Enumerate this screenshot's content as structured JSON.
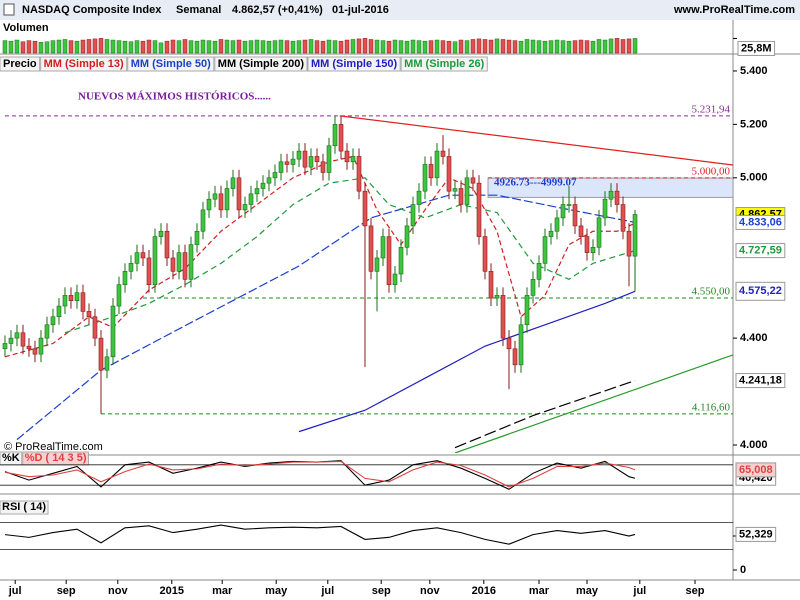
{
  "header": {
    "title": "NASDAQ Composite Index",
    "period": "Semanal",
    "last": "4.862,57 (+0,41%)",
    "date": "01-jul-2016",
    "site": "www.ProRealTime.com",
    "copyright": "© ProRealTime.com"
  },
  "chart_data": [
    {
      "type": "bar",
      "title": "Volumen",
      "ylim": [
        0,
        55
      ],
      "yticks": [
        {
          "value": 25.8,
          "label": "25,8M"
        }
      ],
      "values": [
        22,
        21,
        23,
        20,
        22,
        21,
        19,
        20,
        22,
        23,
        24,
        22,
        21,
        23,
        24,
        25,
        26,
        24,
        23,
        22,
        21,
        20,
        22,
        21,
        23,
        22,
        18,
        21,
        23,
        22,
        24,
        22,
        21,
        23,
        22,
        21,
        24,
        23,
        22,
        23,
        21,
        22,
        23,
        22,
        21,
        22,
        23,
        22,
        21,
        22,
        23,
        24,
        22,
        21,
        23,
        22,
        21,
        23,
        24,
        25,
        26,
        24,
        23,
        22,
        21,
        23,
        22,
        21,
        23,
        22,
        21,
        22,
        23,
        22,
        21,
        20,
        23,
        22,
        24,
        25,
        24,
        23,
        25,
        24,
        23,
        22,
        21,
        24,
        23,
        22,
        21,
        22,
        23,
        22,
        21,
        22,
        23,
        22,
        21,
        24,
        23,
        25,
        26,
        24,
        25,
        25.8
      ]
    },
    {
      "type": "candlestick",
      "title": "Precio",
      "up_color": "#3ec43e",
      "down_color": "#e05050",
      "xlim": [
        -0.83,
        121.33
      ],
      "ylim": [
        3970,
        5456
      ],
      "xticks": [
        {
          "value": 1.7,
          "label": "jul"
        },
        {
          "value": 10.2,
          "label": "sep"
        },
        {
          "value": 18.8,
          "label": "nov"
        },
        {
          "value": 27.8,
          "label": "2015"
        },
        {
          "value": 36.2,
          "label": "mar"
        },
        {
          "value": 45.2,
          "label": "may"
        },
        {
          "value": 53.8,
          "label": "jul"
        },
        {
          "value": 62.7,
          "label": "sep"
        },
        {
          "value": 70.8,
          "label": "nov"
        },
        {
          "value": 79.8,
          "label": "2016"
        },
        {
          "value": 89,
          "label": "mar"
        },
        {
          "value": 97,
          "label": "may"
        },
        {
          "value": 105.8,
          "label": "jul"
        },
        {
          "value": 115,
          "label": "sep"
        }
      ],
      "yticks": [
        {
          "value": 5400,
          "label": "5.400"
        },
        {
          "value": 5200,
          "label": "5.200"
        },
        {
          "value": 5000,
          "label": "5.000"
        },
        {
          "value": 4400,
          "label": "4.400"
        },
        {
          "value": 4000,
          "label": "4.000"
        }
      ],
      "open": [
        4360,
        4380,
        4400,
        4420,
        4370,
        4360,
        4340,
        4400,
        4450,
        4480,
        4520,
        4560,
        4540,
        4570,
        4500,
        4480,
        4400,
        4280,
        4330,
        4520,
        4600,
        4650,
        4680,
        4720,
        4700,
        4600,
        4780,
        4800,
        4700,
        4650,
        4720,
        4620,
        4750,
        4800,
        4880,
        4920,
        4940,
        4880,
        4960,
        5000,
        4880,
        4900,
        4940,
        4960,
        4980,
        5000,
        5020,
        5060,
        5050,
        5070,
        5100,
        5040,
        5080,
        5060,
        5020,
        5120,
        5200,
        5100,
        5060,
        5080,
        4950,
        4820,
        4650,
        4700,
        4780,
        4600,
        4640,
        4740,
        4820,
        4900,
        4950,
        5050,
        5000,
        5100,
        5080,
        4950,
        4960,
        4900,
        5000,
        4980,
        4780,
        4650,
        4550,
        4560,
        4400,
        4360,
        4300,
        4450,
        4560,
        4620,
        4680,
        4780,
        4800,
        4850,
        4900,
        4900,
        4820,
        4780,
        4720,
        4740,
        4850,
        4920,
        4950,
        4900,
        4800,
        4707
      ],
      "high": [
        4410,
        4430,
        4450,
        4450,
        4400,
        4390,
        4430,
        4480,
        4510,
        4550,
        4590,
        4590,
        4600,
        4600,
        4530,
        4510,
        4430,
        4360,
        4550,
        4630,
        4680,
        4710,
        4750,
        4750,
        4730,
        4810,
        4830,
        4830,
        4730,
        4750,
        4750,
        4780,
        4830,
        4910,
        4950,
        4970,
        4970,
        4990,
        5030,
        5030,
        4930,
        4970,
        4990,
        5010,
        5030,
        5050,
        5090,
        5090,
        5100,
        5130,
        5130,
        5110,
        5110,
        5090,
        5150,
        5231.94,
        5230,
        5130,
        5110,
        5110,
        4980,
        4850,
        4730,
        4810,
        4810,
        4670,
        4770,
        4850,
        4930,
        4980,
        5080,
        5080,
        5130,
        5160,
        5110,
        4990,
        4990,
        5030,
        5030,
        5010,
        4810,
        4680,
        4590,
        4590,
        4430,
        4390,
        4480,
        4590,
        4650,
        4710,
        4810,
        4830,
        4880,
        4930,
        4970,
        4930,
        4850,
        4810,
        4770,
        4880,
        4950,
        4980,
        4980,
        4930,
        4830,
        4880
      ],
      "low": [
        4330,
        4350,
        4370,
        4340,
        4330,
        4310,
        4310,
        4370,
        4420,
        4450,
        4490,
        4510,
        4510,
        4470,
        4450,
        4370,
        4116.6,
        4250,
        4300,
        4490,
        4570,
        4620,
        4650,
        4670,
        4570,
        4570,
        4750,
        4670,
        4620,
        4620,
        4590,
        4590,
        4720,
        4770,
        4850,
        4890,
        4850,
        4850,
        4930,
        4850,
        4850,
        4870,
        4910,
        4930,
        4950,
        4970,
        4990,
        5020,
        5020,
        5040,
        5010,
        5010,
        5030,
        4990,
        4990,
        5090,
        5070,
        5030,
        5030,
        4920,
        4292,
        4620,
        4500,
        4670,
        4570,
        4570,
        4610,
        4710,
        4790,
        4870,
        4920,
        4970,
        4970,
        5050,
        4920,
        4920,
        4870,
        4870,
        4950,
        4750,
        4620,
        4520,
        4520,
        4370,
        4209,
        4270,
        4270,
        4420,
        4530,
        4590,
        4650,
        4750,
        4770,
        4820,
        4870,
        4790,
        4750,
        4690,
        4690,
        4710,
        4820,
        4890,
        4870,
        4770,
        4594,
        4575.22
      ],
      "close": [
        4380,
        4400,
        4420,
        4370,
        4360,
        4340,
        4400,
        4450,
        4480,
        4520,
        4560,
        4540,
        4570,
        4500,
        4480,
        4400,
        4280,
        4330,
        4520,
        4600,
        4650,
        4680,
        4720,
        4700,
        4600,
        4780,
        4800,
        4700,
        4650,
        4720,
        4620,
        4750,
        4800,
        4880,
        4920,
        4940,
        4880,
        4960,
        5000,
        4880,
        4900,
        4940,
        4960,
        4980,
        5000,
        5020,
        5060,
        5050,
        5070,
        5100,
        5040,
        5080,
        5060,
        5020,
        5120,
        5200,
        5100,
        5060,
        5080,
        4950,
        4820,
        4650,
        4700,
        4780,
        4600,
        4640,
        4740,
        4820,
        4900,
        4950,
        5050,
        5000,
        5100,
        5080,
        4950,
        4960,
        4900,
        5000,
        4980,
        4780,
        4650,
        4550,
        4560,
        4400,
        4360,
        4300,
        4450,
        4560,
        4620,
        4680,
        4780,
        4800,
        4850,
        4900,
        4900,
        4820,
        4780,
        4720,
        4740,
        4850,
        4920,
        4950,
        4900,
        4800,
        4707,
        4862.57
      ],
      "series": [
        {
          "name": "MM (Simple 13)",
          "color": "#d02020",
          "dash": "5,3",
          "x": [
            0,
            8,
            14,
            18,
            24,
            30,
            36,
            42,
            48,
            54,
            58,
            62,
            66,
            70,
            74,
            78,
            82,
            86,
            90,
            94,
            98,
            102,
            105
          ],
          "values": [
            4330,
            4380,
            4480,
            4440,
            4580,
            4660,
            4800,
            4900,
            5000,
            5060,
            5080,
            4880,
            4750,
            4880,
            5000,
            4960,
            4800,
            4480,
            4560,
            4750,
            4800,
            4800,
            4830
          ]
        },
        {
          "name": "MM (Simple 50)",
          "color": "#1a3fd0",
          "dash": "9,3",
          "x": [
            2,
            16,
            32,
            49,
            61,
            74,
            82,
            92,
            105
          ],
          "values": [
            4020,
            4280,
            4470,
            4670,
            4850,
            4935,
            4935,
            4890,
            4833.06
          ]
        },
        {
          "name": "MM (Simple 200)",
          "color": "#000000",
          "dash": "12,4",
          "x": [
            75,
            88,
            105
          ],
          "values": [
            3990,
            4110,
            4241.18
          ]
        },
        {
          "name": "MM (Simple 150)",
          "color": "#2020c0",
          "dash": "",
          "x": [
            49,
            60,
            70,
            80,
            90,
            100,
            105
          ],
          "values": [
            4050,
            4130,
            4250,
            4370,
            4450,
            4530,
            4575.22
          ]
        },
        {
          "name": "MM (Simple 26)",
          "color": "#1e9a3a",
          "dash": "6,4",
          "x": [
            10,
            18,
            24,
            30,
            36,
            42,
            48,
            54,
            60,
            64,
            70,
            76,
            82,
            88,
            94,
            98,
            105
          ],
          "values": [
            4420,
            4480,
            4530,
            4600,
            4680,
            4780,
            4900,
            4980,
            5000,
            4900,
            4850,
            4900,
            4870,
            4680,
            4620,
            4680,
            4727.59
          ]
        }
      ],
      "price_labels": [
        {
          "value": 4862.57,
          "label": "4.862,57",
          "color": "#000000",
          "bg": "#ffff00"
        },
        {
          "value": 4833.06,
          "label": "4.833,06",
          "color": "#1a3fd0",
          "bg": "#ffffff"
        },
        {
          "value": 4727.59,
          "label": "4.727,59",
          "color": "#1e9a3a",
          "bg": "#ffffff"
        },
        {
          "value": 4575.22,
          "label": "4.575,22",
          "color": "#2020c0",
          "bg": "#ffffff"
        },
        {
          "value": 4241.18,
          "label": "4.241,18",
          "color": "#000000",
          "bg": "#ffffff"
        }
      ],
      "hlines": [
        {
          "value": 5231.94,
          "label": "5.231,94",
          "color": "#8a2a9a",
          "x0": 0
        },
        {
          "value": 5000,
          "label": "5.000,00",
          "color": "#e02020",
          "x0": 80.5
        },
        {
          "value": 4550,
          "label": "4.550,00",
          "color": "#1e8a1e",
          "x0": 23
        },
        {
          "value": 4116.6,
          "label": "4.116,60",
          "color": "#1e8a1e",
          "x0": 16
        }
      ],
      "zones": [
        {
          "from": 4926.73,
          "to": 4999.07,
          "x0": 80.5,
          "label": "4926.73---4999.07",
          "color": "#dce6fa"
        }
      ],
      "trendlines": [
        {
          "color": "#e02020",
          "x": [
            55.8,
            121.3
          ],
          "values": [
            5231.94,
            5048
          ]
        },
        {
          "color": "#2a9a2a",
          "x": [
            75,
            121.3
          ],
          "values": [
            3970,
            4337
          ]
        }
      ],
      "note": "NUEVOS MÁXIMOS HISTÓRICOS......"
    },
    {
      "type": "line",
      "title": "%K",
      "ylim": [
        0,
        100
      ],
      "levels": [
        80,
        20
      ],
      "series": [
        {
          "name": "%K",
          "color": "#000000",
          "x": [
            0,
            4,
            8,
            12,
            16,
            20,
            24,
            28,
            32,
            36,
            40,
            44,
            48,
            52,
            56,
            60,
            64,
            68,
            72,
            76,
            80,
            84,
            88,
            92,
            96,
            100,
            104,
            105
          ],
          "values": [
            60,
            35,
            55,
            75,
            15,
            80,
            88,
            55,
            70,
            88,
            75,
            85,
            90,
            88,
            92,
            20,
            35,
            80,
            92,
            70,
            40,
            8,
            55,
            85,
            70,
            90,
            45,
            40.42
          ],
          "value_labels": [
            null,
            null,
            null,
            null,
            null,
            null,
            null,
            null,
            null,
            null,
            null,
            null,
            null,
            null,
            null,
            null,
            null,
            null,
            null,
            null,
            null,
            null,
            null,
            null,
            null,
            null,
            null,
            "40,420"
          ]
        },
        {
          "name": "%D ( 14 3 5)",
          "color": "#e04040",
          "x": [
            0,
            4,
            8,
            12,
            16,
            20,
            24,
            28,
            32,
            36,
            40,
            44,
            48,
            52,
            56,
            60,
            64,
            68,
            72,
            76,
            80,
            84,
            88,
            92,
            96,
            100,
            104,
            105
          ],
          "values": [
            58,
            45,
            50,
            65,
            30,
            60,
            82,
            65,
            68,
            82,
            78,
            82,
            88,
            88,
            90,
            40,
            30,
            65,
            88,
            78,
            50,
            15,
            40,
            75,
            75,
            85,
            72,
            65.008
          ],
          "value_labels": [
            null,
            null,
            null,
            null,
            null,
            null,
            null,
            null,
            null,
            null,
            null,
            null,
            null,
            null,
            null,
            null,
            null,
            null,
            null,
            null,
            null,
            null,
            null,
            null,
            null,
            null,
            null,
            "65,008"
          ]
        }
      ]
    },
    {
      "type": "line",
      "title": "RSI ( 14)",
      "ylim": [
        0,
        100
      ],
      "yticks": [
        0,
        50
      ],
      "levels": [
        70,
        30
      ],
      "series": [
        {
          "color": "#000000",
          "x": [
            0,
            4,
            8,
            12,
            16,
            20,
            24,
            28,
            32,
            36,
            40,
            44,
            48,
            52,
            56,
            60,
            64,
            68,
            72,
            76,
            80,
            84,
            88,
            92,
            96,
            100,
            104,
            105
          ],
          "values": [
            52,
            48,
            55,
            60,
            40,
            62,
            65,
            55,
            60,
            66,
            60,
            62,
            63,
            62,
            64,
            45,
            48,
            58,
            62,
            55,
            45,
            38,
            52,
            58,
            54,
            58,
            50,
            52.329
          ],
          "value_labels": [
            null,
            null,
            null,
            null,
            null,
            null,
            null,
            null,
            null,
            null,
            null,
            null,
            null,
            null,
            null,
            null,
            null,
            null,
            null,
            null,
            null,
            null,
            null,
            null,
            null,
            null,
            null,
            "52,329"
          ]
        }
      ]
    }
  ]
}
